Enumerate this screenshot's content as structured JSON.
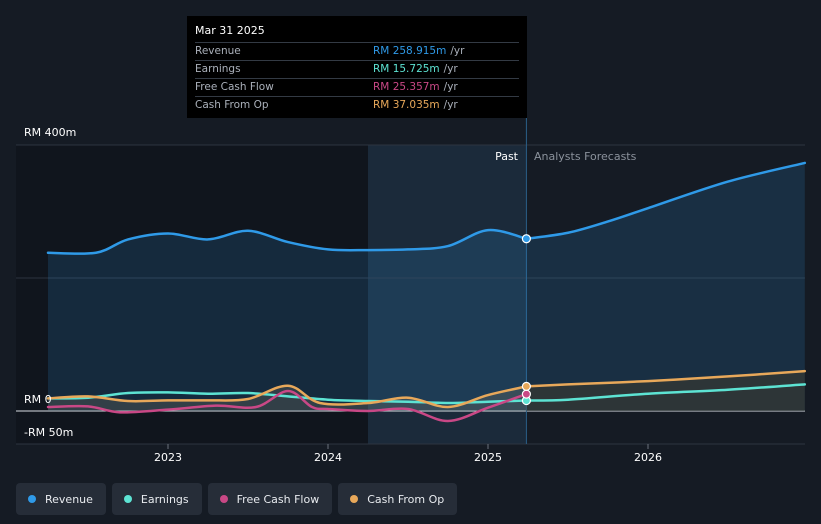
{
  "chart_data": {
    "type": "area",
    "currency_axis_labels": {
      "top": "RM 400m",
      "zero": "RM 0",
      "bottom": "-RM 50m"
    },
    "ylim": [
      -50,
      400
    ],
    "x_ticks": [
      "2023",
      "2024",
      "2025",
      "2026"
    ],
    "past_label": "Past",
    "forecast_label": "Analysts Forecasts",
    "series": [
      {
        "name": "Revenue",
        "color": "#2f9ae8",
        "points": [
          [
            2022.25,
            238
          ],
          [
            2022.55,
            238
          ],
          [
            2022.75,
            258
          ],
          [
            2023.0,
            267
          ],
          [
            2023.25,
            258
          ],
          [
            2023.5,
            271
          ],
          [
            2023.75,
            254
          ],
          [
            2024.0,
            243
          ],
          [
            2024.25,
            242
          ],
          [
            2024.5,
            243
          ],
          [
            2024.75,
            248
          ],
          [
            2025.0,
            272
          ],
          [
            2025.24,
            259
          ]
        ],
        "forecast": [
          [
            2025.24,
            259
          ],
          [
            2025.5,
            268
          ],
          [
            2025.75,
            285
          ],
          [
            2026.0,
            305
          ],
          [
            2026.5,
            345
          ],
          [
            2026.98,
            373
          ]
        ]
      },
      {
        "name": "Earnings",
        "color": "#5de3d3",
        "points": [
          [
            2022.25,
            19
          ],
          [
            2022.5,
            20
          ],
          [
            2022.75,
            27
          ],
          [
            2023.0,
            28
          ],
          [
            2023.25,
            26
          ],
          [
            2023.5,
            27
          ],
          [
            2023.75,
            22
          ],
          [
            2024.0,
            17
          ],
          [
            2024.25,
            15
          ],
          [
            2024.5,
            14
          ],
          [
            2024.75,
            12
          ],
          [
            2025.0,
            14
          ],
          [
            2025.24,
            15.7
          ]
        ],
        "forecast": [
          [
            2025.24,
            15.7
          ],
          [
            2025.5,
            17
          ],
          [
            2026.0,
            26
          ],
          [
            2026.5,
            32
          ],
          [
            2026.98,
            40
          ]
        ]
      },
      {
        "name": "Free Cash Flow",
        "color": "#c94886",
        "points": [
          [
            2022.25,
            6
          ],
          [
            2022.5,
            7
          ],
          [
            2022.7,
            -2
          ],
          [
            2023.0,
            2
          ],
          [
            2023.3,
            8
          ],
          [
            2023.55,
            6
          ],
          [
            2023.75,
            30
          ],
          [
            2023.9,
            6
          ],
          [
            2024.0,
            3
          ],
          [
            2024.25,
            0
          ],
          [
            2024.5,
            3
          ],
          [
            2024.75,
            -15
          ],
          [
            2025.0,
            5
          ],
          [
            2025.24,
            25.4
          ]
        ],
        "forecast": []
      },
      {
        "name": "Cash From Op",
        "color": "#e8a85a",
        "points": [
          [
            2022.25,
            19
          ],
          [
            2022.5,
            22
          ],
          [
            2022.75,
            15
          ],
          [
            2023.0,
            16
          ],
          [
            2023.25,
            16
          ],
          [
            2023.5,
            18
          ],
          [
            2023.75,
            38
          ],
          [
            2023.95,
            12
          ],
          [
            2024.25,
            12
          ],
          [
            2024.5,
            20
          ],
          [
            2024.75,
            6
          ],
          [
            2025.0,
            24
          ],
          [
            2025.24,
            37
          ]
        ],
        "forecast": [
          [
            2025.24,
            37
          ],
          [
            2025.5,
            40
          ],
          [
            2026.0,
            45
          ],
          [
            2026.5,
            52
          ],
          [
            2026.98,
            60
          ]
        ]
      }
    ]
  },
  "tooltip": {
    "date": "Mar 31 2025",
    "rows": [
      {
        "label": "Revenue",
        "value": "RM 258.915m",
        "unit": "/yr",
        "color": "#2f9ae8"
      },
      {
        "label": "Earnings",
        "value": "RM 15.725m",
        "unit": "/yr",
        "color": "#5de3d3"
      },
      {
        "label": "Free Cash Flow",
        "value": "RM 25.357m",
        "unit": "/yr",
        "color": "#c94886"
      },
      {
        "label": "Cash From Op",
        "value": "RM 37.035m",
        "unit": "/yr",
        "color": "#e8a85a"
      }
    ]
  },
  "legend": [
    {
      "label": "Revenue",
      "color": "#2f9ae8"
    },
    {
      "label": "Earnings",
      "color": "#5de3d3"
    },
    {
      "label": "Free Cash Flow",
      "color": "#c94886"
    },
    {
      "label": "Cash From Op",
      "color": "#e8a85a"
    }
  ]
}
